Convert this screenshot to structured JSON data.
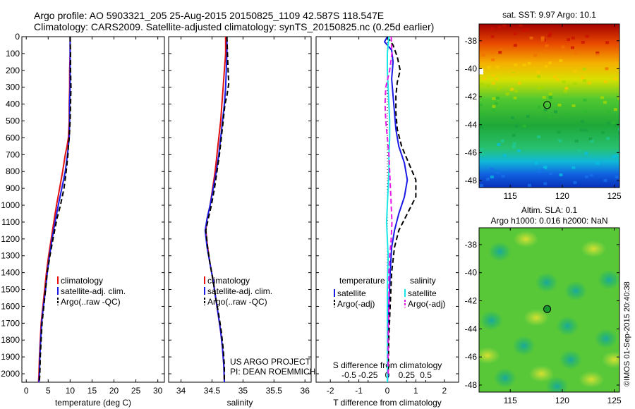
{
  "header": {
    "line1": "Argo profile: AO 5903321_205 25-Aug-2015 20150825_1109 42.587S 118.547E",
    "line2": "Climatology: CARS2009. Satellite-adjusted climatology: synTS_20150825.nc (0.25d earlier)"
  },
  "credit": {
    "project": "US ARGO PROJECT",
    "pi": "PI: DEAN ROEMMICH",
    "stamp": "©IMOS 01-Sep-2015 20:40:38"
  },
  "colors": {
    "climatology": "#e01010",
    "satellite": "#1a1ae6",
    "argo": "#000000",
    "salinity_satellite": "#19e6e6",
    "salinity_argo": "#e619e6"
  },
  "chart_data": [
    {
      "id": "temperature",
      "type": "line",
      "xlabel": "temperature (deg C)",
      "ylabel": "",
      "xlim": [
        -1,
        31.5
      ],
      "ylim": [
        2050,
        0
      ],
      "xticks": [
        0,
        5,
        10,
        15,
        20,
        25,
        30
      ],
      "xtick_labels": [
        "0",
        "5",
        "10",
        "15",
        "20",
        "25",
        "30"
      ],
      "yticks": [
        0,
        100,
        200,
        300,
        400,
        500,
        600,
        700,
        800,
        900,
        1000,
        1100,
        1200,
        1300,
        1400,
        1500,
        1600,
        1700,
        1800,
        1900,
        2000
      ],
      "legend": [
        "climatology",
        "satellite-adj. clim.",
        "Argo(..raw -QC)"
      ],
      "series": [
        {
          "name": "climatology",
          "style": "solid",
          "color": "#e01010",
          "points": [
            [
              10,
              0
            ],
            [
              10,
              100
            ],
            [
              9.9,
              200
            ],
            [
              9.9,
              300
            ],
            [
              9.8,
              400
            ],
            [
              9.8,
              500
            ],
            [
              9.6,
              600
            ],
            [
              9.3,
              650
            ],
            [
              8.9,
              700
            ],
            [
              8.3,
              800
            ],
            [
              7.6,
              900
            ],
            [
              6.9,
              1000
            ],
            [
              6.4,
              1080
            ],
            [
              5.7,
              1200
            ],
            [
              5.1,
              1300
            ],
            [
              4.6,
              1400
            ],
            [
              4.2,
              1500
            ],
            [
              3.8,
              1600
            ],
            [
              3.4,
              1700
            ],
            [
              3.2,
              1800
            ],
            [
              3.0,
              1900
            ],
            [
              2.9,
              2000
            ],
            [
              2.8,
              2050
            ]
          ]
        },
        {
          "name": "satellite-adj. clim.",
          "style": "solid",
          "color": "#1a1ae6",
          "points": [
            [
              10,
              0
            ],
            [
              10,
              100
            ],
            [
              10,
              200
            ],
            [
              10,
              300
            ],
            [
              9.9,
              400
            ],
            [
              9.9,
              500
            ],
            [
              9.8,
              600
            ],
            [
              9.6,
              650
            ],
            [
              9.4,
              700
            ],
            [
              8.9,
              800
            ],
            [
              8.1,
              900
            ],
            [
              7.3,
              1000
            ],
            [
              6.7,
              1080
            ],
            [
              5.9,
              1200
            ],
            [
              5.3,
              1300
            ],
            [
              4.8,
              1400
            ],
            [
              4.4,
              1500
            ],
            [
              3.9,
              1600
            ],
            [
              3.5,
              1700
            ],
            [
              3.3,
              1800
            ],
            [
              3.1,
              1900
            ],
            [
              3.0,
              2000
            ],
            [
              2.9,
              2050
            ]
          ]
        },
        {
          "name": "Argo(..raw -QC)",
          "style": "dashed",
          "color": "#000000",
          "points": [
            [
              10,
              0
            ],
            [
              10.1,
              100
            ],
            [
              10.1,
              200
            ],
            [
              10.2,
              300
            ],
            [
              10.1,
              400
            ],
            [
              10.0,
              500
            ],
            [
              9.8,
              600
            ],
            [
              9.6,
              650
            ],
            [
              9.5,
              700
            ],
            [
              9.1,
              800
            ],
            [
              8.6,
              900
            ],
            [
              7.8,
              1000
            ],
            [
              7.0,
              1080
            ],
            [
              6.1,
              1200
            ],
            [
              5.4,
              1300
            ],
            [
              4.8,
              1400
            ],
            [
              4.4,
              1500
            ],
            [
              4.0,
              1600
            ],
            [
              3.6,
              1700
            ],
            [
              3.4,
              1800
            ],
            [
              3.2,
              1900
            ],
            [
              3.1,
              2000
            ],
            [
              3.0,
              2040
            ]
          ]
        }
      ]
    },
    {
      "id": "salinity",
      "type": "line",
      "xlabel": "salinity",
      "ylabel": "",
      "xlim": [
        33.8,
        36.1
      ],
      "ylim": [
        2050,
        0
      ],
      "xticks": [
        34,
        34.5,
        35,
        35.5,
        36
      ],
      "xtick_labels": [
        "34",
        "34.5",
        "35",
        "35.5",
        "36"
      ],
      "legend": [
        "climatology",
        "satellite-adj. clim.",
        "Argo(..raw -QC)"
      ],
      "series": [
        {
          "name": "climatology",
          "style": "solid",
          "color": "#e01010",
          "points": [
            [
              34.72,
              0
            ],
            [
              34.72,
              100
            ],
            [
              34.7,
              200
            ],
            [
              34.68,
              300
            ],
            [
              34.66,
              400
            ],
            [
              34.64,
              500
            ],
            [
              34.61,
              600
            ],
            [
              34.58,
              700
            ],
            [
              34.55,
              800
            ],
            [
              34.51,
              900
            ],
            [
              34.47,
              1000
            ],
            [
              34.42,
              1080
            ],
            [
              34.4,
              1150
            ],
            [
              34.43,
              1250
            ],
            [
              34.47,
              1350
            ],
            [
              34.52,
              1450
            ],
            [
              34.56,
              1550
            ],
            [
              34.6,
              1650
            ],
            [
              34.64,
              1750
            ],
            [
              34.67,
              1850
            ],
            [
              34.69,
              1950
            ],
            [
              34.7,
              2050
            ]
          ]
        },
        {
          "name": "satellite-adj. clim.",
          "style": "solid",
          "color": "#1a1ae6",
          "points": [
            [
              34.74,
              0
            ],
            [
              34.74,
              100
            ],
            [
              34.73,
              200
            ],
            [
              34.72,
              300
            ],
            [
              34.7,
              400
            ],
            [
              34.67,
              500
            ],
            [
              34.64,
              600
            ],
            [
              34.61,
              700
            ],
            [
              34.57,
              800
            ],
            [
              34.52,
              900
            ],
            [
              34.47,
              1000
            ],
            [
              34.42,
              1080
            ],
            [
              34.39,
              1150
            ],
            [
              34.42,
              1250
            ],
            [
              34.47,
              1350
            ],
            [
              34.52,
              1450
            ],
            [
              34.56,
              1550
            ],
            [
              34.6,
              1650
            ],
            [
              34.64,
              1750
            ],
            [
              34.67,
              1850
            ],
            [
              34.69,
              1950
            ],
            [
              34.7,
              2050
            ]
          ]
        },
        {
          "name": "Argo(..raw -QC)",
          "style": "dashed",
          "color": "#000000",
          "points": [
            [
              34.74,
              0
            ],
            [
              34.75,
              100
            ],
            [
              34.76,
              200
            ],
            [
              34.77,
              280
            ],
            [
              34.74,
              350
            ],
            [
              34.71,
              400
            ],
            [
              34.68,
              500
            ],
            [
              34.65,
              600
            ],
            [
              34.62,
              700
            ],
            [
              34.58,
              800
            ],
            [
              34.54,
              900
            ],
            [
              34.49,
              1000
            ],
            [
              34.44,
              1080
            ],
            [
              34.4,
              1150
            ],
            [
              34.43,
              1250
            ],
            [
              34.47,
              1350
            ],
            [
              34.52,
              1450
            ],
            [
              34.56,
              1550
            ],
            [
              34.61,
              1650
            ],
            [
              34.65,
              1750
            ],
            [
              34.68,
              1850
            ],
            [
              34.7,
              1950
            ],
            [
              34.7,
              2040
            ]
          ]
        }
      ]
    },
    {
      "id": "difference",
      "type": "line",
      "xlabel": "T difference from climatology",
      "xlabel2": "S difference from climatology",
      "xlim": [
        -2.5,
        2.5
      ],
      "ylim": [
        2050,
        0
      ],
      "xticks": [
        -2,
        -1,
        0,
        1,
        2
      ],
      "xtick_labels": [
        "-2",
        "-1",
        "0",
        "1",
        "2"
      ],
      "sticks": [
        -0.5,
        -0.25,
        0,
        0.25,
        0.5
      ],
      "stick_labels": [
        "-0.5",
        "-0.25",
        "0",
        "0.25",
        "0.5"
      ],
      "legend_title_t": "temperature",
      "legend_title_s": "salinity",
      "legend_t": [
        "satellite",
        "Argo(-adj)"
      ],
      "legend_s": [
        "satellite",
        "Argo(-adj)"
      ],
      "series": [
        {
          "name": "temperature satellite",
          "style": "solid",
          "color": "#1a1ae6",
          "points": [
            [
              0,
              0
            ],
            [
              -0.1,
              30
            ],
            [
              0.15,
              80
            ],
            [
              0.2,
              150
            ],
            [
              0.15,
              250
            ],
            [
              0.2,
              350
            ],
            [
              0.25,
              450
            ],
            [
              0.3,
              550
            ],
            [
              0.4,
              650
            ],
            [
              0.6,
              750
            ],
            [
              0.7,
              850
            ],
            [
              0.6,
              950
            ],
            [
              0.4,
              1050
            ],
            [
              0.25,
              1150
            ],
            [
              0.15,
              1250
            ],
            [
              0.1,
              1400
            ],
            [
              0.05,
              1600
            ],
            [
              0.03,
              1800
            ],
            [
              0.02,
              2000
            ],
            [
              0.0,
              2050
            ]
          ]
        },
        {
          "name": "temperature Argo(-adj)",
          "style": "dashed",
          "color": "#000000",
          "points": [
            [
              0,
              0
            ],
            [
              0.2,
              50
            ],
            [
              0.35,
              120
            ],
            [
              0.45,
              200
            ],
            [
              0.35,
              270
            ],
            [
              0.3,
              350
            ],
            [
              0.3,
              450
            ],
            [
              0.35,
              550
            ],
            [
              0.5,
              650
            ],
            [
              0.75,
              750
            ],
            [
              1.0,
              850
            ],
            [
              1.0,
              950
            ],
            [
              0.7,
              1050
            ],
            [
              0.4,
              1150
            ],
            [
              0.25,
              1250
            ],
            [
              0.15,
              1400
            ],
            [
              0.1,
              1600
            ],
            [
              0.05,
              1800
            ],
            [
              0.03,
              2000
            ]
          ]
        },
        {
          "name": "salinity satellite",
          "style": "solid",
          "color": "#19e6e6",
          "points": [
            [
              0.02,
              0
            ],
            [
              0.0,
              100
            ],
            [
              0.0,
              200
            ],
            [
              0.01,
              300
            ],
            [
              0.02,
              400
            ],
            [
              0.03,
              500
            ],
            [
              0.03,
              600
            ],
            [
              0.02,
              700
            ],
            [
              0.02,
              800
            ],
            [
              0.01,
              900
            ],
            [
              0.0,
              1000
            ],
            [
              -0.01,
              1100
            ],
            [
              0.0,
              1200
            ],
            [
              0.01,
              1300
            ],
            [
              0.0,
              1500
            ],
            [
              0.0,
              1700
            ],
            [
              0.0,
              1900
            ],
            [
              0.0,
              2050
            ]
          ]
        },
        {
          "name": "salinity Argo(-adj)",
          "style": "dashed",
          "color": "#e619e6",
          "points": [
            [
              0.05,
              0
            ],
            [
              0.06,
              100
            ],
            [
              0.03,
              200
            ],
            [
              -0.02,
              300
            ],
            [
              -0.03,
              400
            ],
            [
              -0.02,
              500
            ],
            [
              0.0,
              600
            ],
            [
              0.02,
              700
            ],
            [
              0.03,
              800
            ],
            [
              0.04,
              900
            ],
            [
              0.05,
              1000
            ],
            [
              0.06,
              1100
            ],
            [
              0.05,
              1200
            ],
            [
              0.03,
              1300
            ],
            [
              0.02,
              1400
            ],
            [
              0.02,
              1600
            ],
            [
              0.01,
              1800
            ],
            [
              0.01,
              2000
            ]
          ]
        }
      ]
    },
    {
      "id": "sst_map",
      "type": "heatmap",
      "title": "sat. SST: 9.97 Argo: 10.1",
      "xlim": [
        112,
        125.5
      ],
      "ylim": [
        -48.5,
        -36.8
      ],
      "xticks": [
        115,
        120,
        125
      ],
      "xtick_labels": [
        "115",
        "120",
        "125"
      ],
      "yticks": [
        -38,
        -40,
        -42,
        -44,
        -46,
        -48
      ],
      "ytick_labels": [
        "-38",
        "-40",
        "-42",
        "-44",
        "-46",
        "-48"
      ],
      "marker": [
        118.55,
        -42.59
      ]
    },
    {
      "id": "sla_map",
      "type": "heatmap",
      "title": "Altim. SLA: 0.1",
      "subtitle": "Argo h1000: 0.016 h2000: NaN",
      "xlim": [
        112,
        125.5
      ],
      "ylim": [
        -48.5,
        -36.8
      ],
      "xticks": [
        115,
        120,
        125
      ],
      "xtick_labels": [
        "115",
        "120",
        "125"
      ],
      "yticks": [
        -38,
        -40,
        -42,
        -44,
        -46,
        -48
      ],
      "ytick_labels": [
        "-38",
        "-40",
        "-42",
        "-44",
        "-46",
        "-48"
      ],
      "marker": [
        118.55,
        -42.59
      ]
    }
  ]
}
